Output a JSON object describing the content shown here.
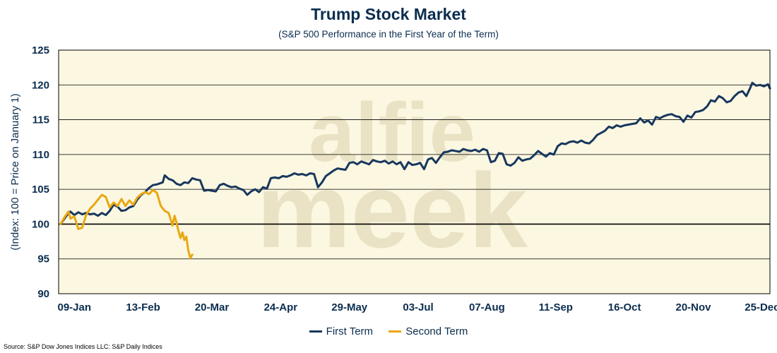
{
  "chart_data": {
    "type": "line",
    "title": "Trump Stock Market",
    "subtitle": "(S&P 500 Performance in the First Year of the Term)",
    "ylabel": "(Index: 100 = Price on January 1)",
    "xlabel": "",
    "ylim": [
      90,
      125
    ],
    "yticks": [
      90,
      95,
      100,
      105,
      110,
      115,
      120,
      125
    ],
    "xlim": [
      0,
      362
    ],
    "xticks": [
      {
        "label": "09-Jan",
        "day": 8
      },
      {
        "label": "13-Feb",
        "day": 43
      },
      {
        "label": "20-Mar",
        "day": 78
      },
      {
        "label": "24-Apr",
        "day": 113
      },
      {
        "label": "29-May",
        "day": 148
      },
      {
        "label": "03-Jul",
        "day": 183
      },
      {
        "label": "07-Aug",
        "day": 218
      },
      {
        "label": "11-Sep",
        "day": 253
      },
      {
        "label": "16-Oct",
        "day": 288
      },
      {
        "label": "20-Nov",
        "day": 323
      },
      {
        "label": "25-Dec",
        "day": 358
      }
    ],
    "grid": true,
    "legend_position": "bottom",
    "background": "#fbf7e1",
    "watermark": "alfie meek",
    "series": [
      {
        "name": "First Term",
        "color": "#17375e",
        "points": [
          [
            1,
            100
          ],
          [
            4,
            101.2
          ],
          [
            6,
            101.8
          ],
          [
            8,
            101.3
          ],
          [
            10,
            101.7
          ],
          [
            12,
            101.4
          ],
          [
            14,
            101.6
          ],
          [
            16,
            101.4
          ],
          [
            18,
            101.5
          ],
          [
            20,
            101.2
          ],
          [
            22,
            101.6
          ],
          [
            24,
            101.3
          ],
          [
            26,
            101.9
          ],
          [
            28,
            102.8
          ],
          [
            30,
            102.5
          ],
          [
            32,
            101.9
          ],
          [
            34,
            102.0
          ],
          [
            36,
            102.4
          ],
          [
            38,
            102.6
          ],
          [
            40,
            103.5
          ],
          [
            42,
            104.2
          ],
          [
            44,
            104.6
          ],
          [
            46,
            105.2
          ],
          [
            48,
            105.6
          ],
          [
            50,
            105.7
          ],
          [
            53,
            106.0
          ],
          [
            54,
            107.0
          ],
          [
            56,
            106.5
          ],
          [
            58,
            106.3
          ],
          [
            60,
            105.8
          ],
          [
            62,
            105.6
          ],
          [
            64,
            106.0
          ],
          [
            66,
            105.9
          ],
          [
            68,
            106.6
          ],
          [
            70,
            106.4
          ],
          [
            72,
            106.3
          ],
          [
            74,
            104.8
          ],
          [
            76,
            104.9
          ],
          [
            78,
            104.8
          ],
          [
            80,
            104.7
          ],
          [
            82,
            105.6
          ],
          [
            84,
            105.8
          ],
          [
            86,
            105.5
          ],
          [
            88,
            105.3
          ],
          [
            90,
            105.4
          ],
          [
            92,
            105.1
          ],
          [
            94,
            104.9
          ],
          [
            96,
            104.2
          ],
          [
            98,
            104.7
          ],
          [
            100,
            105.0
          ],
          [
            102,
            104.6
          ],
          [
            104,
            105.3
          ],
          [
            106,
            105.1
          ],
          [
            108,
            106.6
          ],
          [
            110,
            106.7
          ],
          [
            112,
            106.6
          ],
          [
            114,
            106.9
          ],
          [
            116,
            106.8
          ],
          [
            118,
            107.0
          ],
          [
            120,
            107.3
          ],
          [
            122,
            107.1
          ],
          [
            124,
            107.2
          ],
          [
            126,
            107.0
          ],
          [
            128,
            107.3
          ],
          [
            130,
            107.2
          ],
          [
            132,
            105.3
          ],
          [
            134,
            106.0
          ],
          [
            136,
            106.9
          ],
          [
            138,
            107.3
          ],
          [
            140,
            107.7
          ],
          [
            142,
            108.0
          ],
          [
            144,
            107.9
          ],
          [
            146,
            107.8
          ],
          [
            148,
            108.8
          ],
          [
            150,
            108.9
          ],
          [
            152,
            108.6
          ],
          [
            154,
            109.0
          ],
          [
            156,
            108.8
          ],
          [
            158,
            108.6
          ],
          [
            160,
            109.2
          ],
          [
            162,
            109.0
          ],
          [
            164,
            108.9
          ],
          [
            166,
            109.1
          ],
          [
            168,
            108.7
          ],
          [
            170,
            109.0
          ],
          [
            172,
            108.6
          ],
          [
            174,
            108.9
          ],
          [
            176,
            107.9
          ],
          [
            178,
            108.9
          ],
          [
            180,
            108.5
          ],
          [
            182,
            108.6
          ],
          [
            184,
            108.8
          ],
          [
            186,
            107.9
          ],
          [
            188,
            109.3
          ],
          [
            190,
            109.5
          ],
          [
            192,
            108.8
          ],
          [
            194,
            109.6
          ],
          [
            196,
            110.3
          ],
          [
            198,
            110.4
          ],
          [
            200,
            110.6
          ],
          [
            202,
            110.5
          ],
          [
            204,
            110.4
          ],
          [
            206,
            110.8
          ],
          [
            208,
            110.6
          ],
          [
            210,
            110.5
          ],
          [
            212,
            110.7
          ],
          [
            214,
            110.4
          ],
          [
            216,
            110.8
          ],
          [
            218,
            110.6
          ],
          [
            220,
            108.9
          ],
          [
            222,
            109.1
          ],
          [
            224,
            110.2
          ],
          [
            226,
            110.1
          ],
          [
            228,
            108.6
          ],
          [
            230,
            108.4
          ],
          [
            232,
            108.8
          ],
          [
            234,
            109.6
          ],
          [
            236,
            109.1
          ],
          [
            238,
            109.3
          ],
          [
            240,
            109.4
          ],
          [
            242,
            109.9
          ],
          [
            244,
            110.5
          ],
          [
            246,
            110.1
          ],
          [
            248,
            109.7
          ],
          [
            250,
            110.2
          ],
          [
            252,
            110.0
          ],
          [
            254,
            111.2
          ],
          [
            256,
            111.6
          ],
          [
            258,
            111.5
          ],
          [
            260,
            111.8
          ],
          [
            262,
            111.9
          ],
          [
            264,
            111.7
          ],
          [
            266,
            112.0
          ],
          [
            268,
            111.7
          ],
          [
            270,
            111.6
          ],
          [
            272,
            112.1
          ],
          [
            274,
            112.8
          ],
          [
            276,
            113.1
          ],
          [
            278,
            113.4
          ],
          [
            280,
            114.0
          ],
          [
            282,
            113.8
          ],
          [
            284,
            114.2
          ],
          [
            286,
            114.0
          ],
          [
            288,
            114.2
          ],
          [
            290,
            114.3
          ],
          [
            292,
            114.4
          ],
          [
            294,
            114.5
          ],
          [
            296,
            115.2
          ],
          [
            298,
            114.6
          ],
          [
            300,
            114.9
          ],
          [
            302,
            114.3
          ],
          [
            304,
            115.4
          ],
          [
            306,
            115.2
          ],
          [
            308,
            115.5
          ],
          [
            310,
            115.7
          ],
          [
            312,
            115.8
          ],
          [
            314,
            115.5
          ],
          [
            316,
            115.4
          ],
          [
            318,
            114.7
          ],
          [
            320,
            115.6
          ],
          [
            322,
            115.3
          ],
          [
            324,
            116.1
          ],
          [
            326,
            116.2
          ],
          [
            328,
            116.4
          ],
          [
            330,
            116.9
          ],
          [
            332,
            117.8
          ],
          [
            334,
            117.6
          ],
          [
            336,
            118.4
          ],
          [
            338,
            118.1
          ],
          [
            340,
            117.5
          ],
          [
            342,
            117.7
          ],
          [
            344,
            118.4
          ],
          [
            346,
            118.9
          ],
          [
            348,
            119.1
          ],
          [
            350,
            118.4
          ],
          [
            352,
            119.6
          ],
          [
            353,
            120.3
          ],
          [
            355,
            119.9
          ],
          [
            357,
            120.0
          ],
          [
            359,
            119.8
          ],
          [
            361,
            120.1
          ],
          [
            362,
            119.5
          ]
        ]
      },
      {
        "name": "Second Term",
        "color": "#e9a811",
        "points": [
          [
            1,
            100
          ],
          [
            3,
            101.0
          ],
          [
            5,
            101.8
          ],
          [
            6,
            100.8
          ],
          [
            8,
            101.1
          ],
          [
            10,
            99.3
          ],
          [
            12,
            99.5
          ],
          [
            14,
            101.3
          ],
          [
            16,
            102.2
          ],
          [
            18,
            102.8
          ],
          [
            20,
            103.5
          ],
          [
            22,
            104.2
          ],
          [
            24,
            103.9
          ],
          [
            26,
            102.4
          ],
          [
            28,
            103.1
          ],
          [
            30,
            102.6
          ],
          [
            32,
            103.6
          ],
          [
            34,
            102.6
          ],
          [
            36,
            103.4
          ],
          [
            38,
            102.8
          ],
          [
            40,
            103.8
          ],
          [
            42,
            104.3
          ],
          [
            44,
            104.6
          ],
          [
            46,
            104.3
          ],
          [
            48,
            104.9
          ],
          [
            50,
            104.5
          ],
          [
            52,
            102.6
          ],
          [
            54,
            101.9
          ],
          [
            56,
            101.6
          ],
          [
            58,
            99.8
          ],
          [
            59,
            101.2
          ],
          [
            60,
            100.2
          ],
          [
            61,
            99.0
          ],
          [
            62,
            98.0
          ],
          [
            63,
            98.8
          ],
          [
            64,
            97.7
          ],
          [
            65,
            98.2
          ],
          [
            66,
            96.2
          ],
          [
            67,
            95.1
          ],
          [
            68,
            95.6
          ]
        ]
      }
    ]
  },
  "source": "Source: S&P Dow Jones Indices LLC: S&P Daily Indices"
}
